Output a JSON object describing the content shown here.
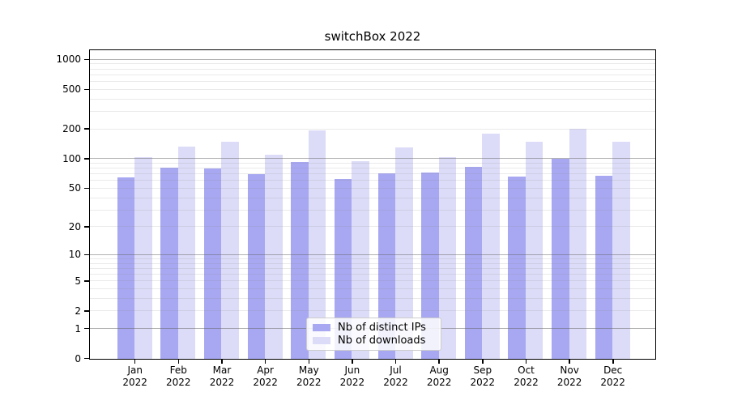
{
  "page": {
    "background": "#ffffff"
  },
  "title": "switchBox 2022",
  "legend": {
    "items": [
      {
        "label": "Nb of distinct IPs",
        "color": "#a8a8f2"
      },
      {
        "label": "Nb of downloads",
        "color": "#dcdcf8"
      }
    ],
    "background": "rgba(255,255,255,0.85)",
    "border_color": "#cccccc"
  },
  "chart_data": {
    "type": "bar",
    "title": "switchBox 2022",
    "categories": [
      "Jan 2022",
      "Feb 2022",
      "Mar 2022",
      "Apr 2022",
      "May 2022",
      "Jun 2022",
      "Jul 2022",
      "Aug 2022",
      "Sep 2022",
      "Oct 2022",
      "Nov 2022",
      "Dec 2022"
    ],
    "series": [
      {
        "name": "Nb of distinct IPs",
        "color": "#a8a8f2",
        "values": [
          65,
          82,
          80,
          70,
          94,
          63,
          71,
          73,
          83,
          66,
          100,
          68
        ]
      },
      {
        "name": "Nb of downloads",
        "color": "#dcdcf8",
        "values": [
          104,
          133,
          150,
          110,
          195,
          95,
          130,
          105,
          180,
          150,
          202,
          150
        ]
      }
    ],
    "xlabel": "",
    "ylabel": "",
    "yscale": "symlog-ln(1+x)",
    "ylim": [
      0,
      1280
    ],
    "y_ticks": [
      1000,
      500,
      200,
      100,
      50,
      20,
      10,
      5,
      2,
      1,
      0
    ],
    "y_major_gridlines": [
      1,
      10,
      100,
      1000
    ],
    "y_minor_gridlines": [
      2,
      3,
      4,
      5,
      6,
      7,
      8,
      9,
      20,
      30,
      40,
      50,
      60,
      70,
      80,
      90,
      200,
      300,
      400,
      500,
      600,
      700,
      800,
      900
    ],
    "grid": "horizontal",
    "legend_position": "lower-center-inside",
    "axis_color": "#000000",
    "major_grid_color": "rgba(100,100,100,0.5)",
    "minor_grid_color": "rgba(140,140,140,0.18)"
  }
}
